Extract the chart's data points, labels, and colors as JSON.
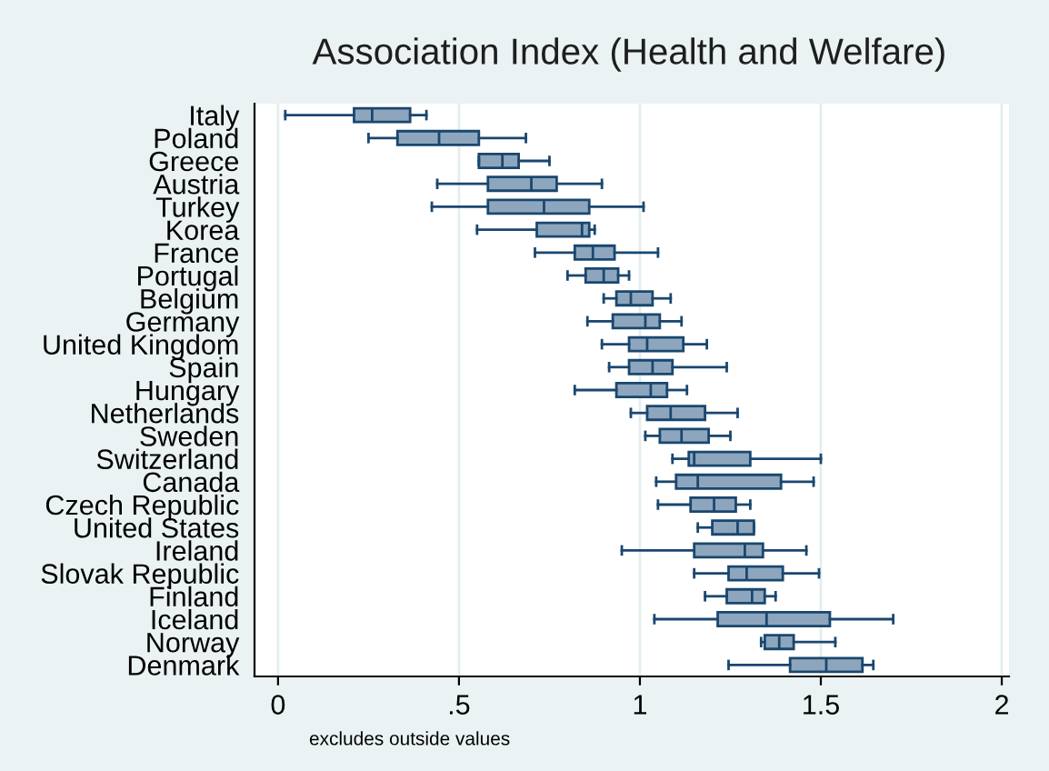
{
  "chart_data": {
    "type": "box",
    "orientation": "horizontal",
    "title": "Association Index (Health and Welfare)",
    "categories": [
      "Italy",
      "Poland",
      "Greece",
      "Austria",
      "Turkey",
      "Korea",
      "France",
      "Portugal",
      "Belgium",
      "Germany",
      "United Kingdom",
      "Spain",
      "Hungary",
      "Netherlands",
      "Sweden",
      "Switzerland",
      "Canada",
      "Czech Republic",
      "United States",
      "Ireland",
      "Slovak Republic",
      "Finland",
      "Iceland",
      "Norway",
      "Denmark"
    ],
    "boxes": [
      {
        "low": 0.02,
        "q1": 0.21,
        "median": 0.26,
        "q3": 0.365,
        "high": 0.41
      },
      {
        "low": 0.25,
        "q1": 0.33,
        "median": 0.445,
        "q3": 0.555,
        "high": 0.685
      },
      {
        "low": 0.555,
        "q1": 0.555,
        "median": 0.62,
        "q3": 0.665,
        "high": 0.75
      },
      {
        "low": 0.44,
        "q1": 0.58,
        "median": 0.7,
        "q3": 0.77,
        "high": 0.895
      },
      {
        "low": 0.425,
        "q1": 0.58,
        "median": 0.735,
        "q3": 0.86,
        "high": 1.01
      },
      {
        "low": 0.55,
        "q1": 0.715,
        "median": 0.84,
        "q3": 0.86,
        "high": 0.875
      },
      {
        "low": 0.71,
        "q1": 0.82,
        "median": 0.87,
        "q3": 0.93,
        "high": 1.05
      },
      {
        "low": 0.8,
        "q1": 0.85,
        "median": 0.9,
        "q3": 0.94,
        "high": 0.97
      },
      {
        "low": 0.9,
        "q1": 0.935,
        "median": 0.975,
        "q3": 1.035,
        "high": 1.085
      },
      {
        "low": 0.855,
        "q1": 0.925,
        "median": 1.015,
        "q3": 1.055,
        "high": 1.115
      },
      {
        "low": 0.895,
        "q1": 0.97,
        "median": 1.02,
        "q3": 1.12,
        "high": 1.185
      },
      {
        "low": 0.915,
        "q1": 0.97,
        "median": 1.035,
        "q3": 1.09,
        "high": 1.24
      },
      {
        "low": 0.82,
        "q1": 0.935,
        "median": 1.03,
        "q3": 1.075,
        "high": 1.13
      },
      {
        "low": 0.975,
        "q1": 1.02,
        "median": 1.085,
        "q3": 1.18,
        "high": 1.27
      },
      {
        "low": 1.015,
        "q1": 1.055,
        "median": 1.115,
        "q3": 1.19,
        "high": 1.25
      },
      {
        "low": 1.09,
        "q1": 1.135,
        "median": 1.15,
        "q3": 1.305,
        "high": 1.5
      },
      {
        "low": 1.045,
        "q1": 1.1,
        "median": 1.16,
        "q3": 1.39,
        "high": 1.48
      },
      {
        "low": 1.05,
        "q1": 1.14,
        "median": 1.205,
        "q3": 1.265,
        "high": 1.305
      },
      {
        "low": 1.16,
        "q1": 1.2,
        "median": 1.27,
        "q3": 1.315,
        "high": 1.315
      },
      {
        "low": 0.95,
        "q1": 1.15,
        "median": 1.29,
        "q3": 1.34,
        "high": 1.46
      },
      {
        "low": 1.15,
        "q1": 1.245,
        "median": 1.295,
        "q3": 1.395,
        "high": 1.495
      },
      {
        "low": 1.18,
        "q1": 1.24,
        "median": 1.31,
        "q3": 1.345,
        "high": 1.375
      },
      {
        "low": 1.04,
        "q1": 1.215,
        "median": 1.35,
        "q3": 1.525,
        "high": 1.7
      },
      {
        "low": 1.335,
        "q1": 1.345,
        "median": 1.385,
        "q3": 1.425,
        "high": 1.54
      },
      {
        "low": 1.245,
        "q1": 1.415,
        "median": 1.515,
        "q3": 1.615,
        "high": 1.645
      }
    ],
    "color": "#8ea6bd",
    "xlim": [
      -0.065,
      2.02
    ],
    "xticks": [
      0,
      {
        "value": 0.5,
        "label": ".5"
      },
      1,
      1.5,
      2
    ],
    "grid": "x",
    "annotations": [
      "excludes outside values"
    ]
  }
}
